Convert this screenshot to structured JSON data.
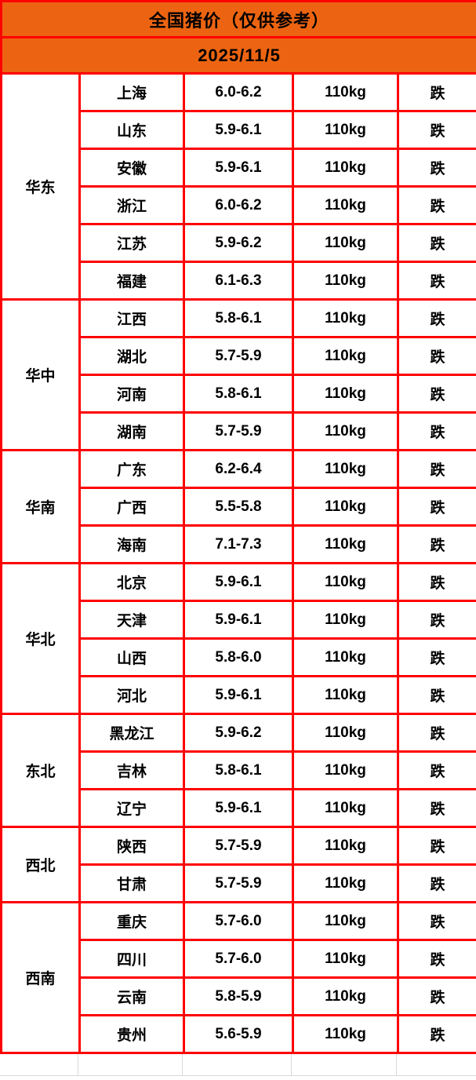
{
  "header": {
    "title": "全国猪价（仅供参考）",
    "date": "2025/11/5"
  },
  "colors": {
    "header_bg": "#ec6412",
    "border_red": "#ff0000",
    "status_green": "#1bc71b",
    "text_black": "#000000",
    "grid_gray": "#d9d9d9"
  },
  "table": {
    "regions": [
      {
        "name": "华东",
        "provinces": [
          {
            "name": "上海",
            "price": "6.0-6.2",
            "weight": "110kg",
            "status": "跌"
          },
          {
            "name": "山东",
            "price": "5.9-6.1",
            "weight": "110kg",
            "status": "跌"
          },
          {
            "name": "安徽",
            "price": "5.9-6.1",
            "weight": "110kg",
            "status": "跌"
          },
          {
            "name": "浙江",
            "price": "6.0-6.2",
            "weight": "110kg",
            "status": "跌"
          },
          {
            "name": "江苏",
            "price": "5.9-6.2",
            "weight": "110kg",
            "status": "跌"
          },
          {
            "name": "福建",
            "price": "6.1-6.3",
            "weight": "110kg",
            "status": "跌"
          }
        ]
      },
      {
        "name": "华中",
        "provinces": [
          {
            "name": "江西",
            "price": "5.8-6.1",
            "weight": "110kg",
            "status": "跌"
          },
          {
            "name": "湖北",
            "price": "5.7-5.9",
            "weight": "110kg",
            "status": "跌"
          },
          {
            "name": "河南",
            "price": "5.8-6.1",
            "weight": "110kg",
            "status": "跌"
          },
          {
            "name": "湖南",
            "price": "5.7-5.9",
            "weight": "110kg",
            "status": "跌"
          }
        ]
      },
      {
        "name": "华南",
        "provinces": [
          {
            "name": "广东",
            "price": "6.2-6.4",
            "weight": "110kg",
            "status": "跌"
          },
          {
            "name": "广西",
            "price": "5.5-5.8",
            "weight": "110kg",
            "status": "跌"
          },
          {
            "name": "海南",
            "price": "7.1-7.3",
            "weight": "110kg",
            "status": "跌"
          }
        ]
      },
      {
        "name": "华北",
        "provinces": [
          {
            "name": "北京",
            "price": "5.9-6.1",
            "weight": "110kg",
            "status": "跌"
          },
          {
            "name": "天津",
            "price": "5.9-6.1",
            "weight": "110kg",
            "status": "跌"
          },
          {
            "name": "山西",
            "price": "5.8-6.0",
            "weight": "110kg",
            "status": "跌"
          },
          {
            "name": "河北",
            "price": "5.9-6.1",
            "weight": "110kg",
            "status": "跌"
          }
        ]
      },
      {
        "name": "东北",
        "provinces": [
          {
            "name": "黑龙江",
            "price": "5.9-6.2",
            "weight": "110kg",
            "status": "跌"
          },
          {
            "name": "吉林",
            "price": "5.8-6.1",
            "weight": "110kg",
            "status": "跌"
          },
          {
            "name": "辽宁",
            "price": "5.9-6.1",
            "weight": "110kg",
            "status": "跌"
          }
        ]
      },
      {
        "name": "西北",
        "provinces": [
          {
            "name": "陕西",
            "price": "5.7-5.9",
            "weight": "110kg",
            "status": "跌"
          },
          {
            "name": "甘肃",
            "price": "5.7-5.9",
            "weight": "110kg",
            "status": "跌"
          }
        ]
      },
      {
        "name": "西南",
        "provinces": [
          {
            "name": "重庆",
            "price": "5.7-6.0",
            "weight": "110kg",
            "status": "跌"
          },
          {
            "name": "四川",
            "price": "5.7-6.0",
            "weight": "110kg",
            "status": "跌"
          },
          {
            "name": "云南",
            "price": "5.8-5.9",
            "weight": "110kg",
            "status": "跌"
          },
          {
            "name": "贵州",
            "price": "5.6-5.9",
            "weight": "110kg",
            "status": "跌"
          }
        ]
      }
    ]
  },
  "chart_data": {
    "type": "table",
    "title": "全国猪价（仅供参考）",
    "date": "2025/11/5",
    "rows": [
      {
        "region": "华东",
        "province": "上海",
        "price_range": "6.0-6.2",
        "weight": "110kg",
        "trend": "跌"
      },
      {
        "region": "华东",
        "province": "山东",
        "price_range": "5.9-6.1",
        "weight": "110kg",
        "trend": "跌"
      },
      {
        "region": "华东",
        "province": "安徽",
        "price_range": "5.9-6.1",
        "weight": "110kg",
        "trend": "跌"
      },
      {
        "region": "华东",
        "province": "浙江",
        "price_range": "6.0-6.2",
        "weight": "110kg",
        "trend": "跌"
      },
      {
        "region": "华东",
        "province": "江苏",
        "price_range": "5.9-6.2",
        "weight": "110kg",
        "trend": "跌"
      },
      {
        "region": "华东",
        "province": "福建",
        "price_range": "6.1-6.3",
        "weight": "110kg",
        "trend": "跌"
      },
      {
        "region": "华中",
        "province": "江西",
        "price_range": "5.8-6.1",
        "weight": "110kg",
        "trend": "跌"
      },
      {
        "region": "华中",
        "province": "湖北",
        "price_range": "5.7-5.9",
        "weight": "110kg",
        "trend": "跌"
      },
      {
        "region": "华中",
        "province": "河南",
        "price_range": "5.8-6.1",
        "weight": "110kg",
        "trend": "跌"
      },
      {
        "region": "华中",
        "province": "湖南",
        "price_range": "5.7-5.9",
        "weight": "110kg",
        "trend": "跌"
      },
      {
        "region": "华南",
        "province": "广东",
        "price_range": "6.2-6.4",
        "weight": "110kg",
        "trend": "跌"
      },
      {
        "region": "华南",
        "province": "广西",
        "price_range": "5.5-5.8",
        "weight": "110kg",
        "trend": "跌"
      },
      {
        "region": "华南",
        "province": "海南",
        "price_range": "7.1-7.3",
        "weight": "110kg",
        "trend": "跌"
      },
      {
        "region": "华北",
        "province": "北京",
        "price_range": "5.9-6.1",
        "weight": "110kg",
        "trend": "跌"
      },
      {
        "region": "华北",
        "province": "天津",
        "price_range": "5.9-6.1",
        "weight": "110kg",
        "trend": "跌"
      },
      {
        "region": "华北",
        "province": "山西",
        "price_range": "5.8-6.0",
        "weight": "110kg",
        "trend": "跌"
      },
      {
        "region": "华北",
        "province": "河北",
        "price_range": "5.9-6.1",
        "weight": "110kg",
        "trend": "跌"
      },
      {
        "region": "东北",
        "province": "黑龙江",
        "price_range": "5.9-6.2",
        "weight": "110kg",
        "trend": "跌"
      },
      {
        "region": "东北",
        "province": "吉林",
        "price_range": "5.8-6.1",
        "weight": "110kg",
        "trend": "跌"
      },
      {
        "region": "东北",
        "province": "辽宁",
        "price_range": "5.9-6.1",
        "weight": "110kg",
        "trend": "跌"
      },
      {
        "region": "西北",
        "province": "陕西",
        "price_range": "5.7-5.9",
        "weight": "110kg",
        "trend": "跌"
      },
      {
        "region": "西北",
        "province": "甘肃",
        "price_range": "5.7-5.9",
        "weight": "110kg",
        "trend": "跌"
      },
      {
        "region": "西南",
        "province": "重庆",
        "price_range": "5.7-6.0",
        "weight": "110kg",
        "trend": "跌"
      },
      {
        "region": "西南",
        "province": "四川",
        "price_range": "5.7-6.0",
        "weight": "110kg",
        "trend": "跌"
      },
      {
        "region": "西南",
        "province": "云南",
        "price_range": "5.8-5.9",
        "weight": "110kg",
        "trend": "跌"
      },
      {
        "region": "西南",
        "province": "贵州",
        "price_range": "5.6-5.9",
        "weight": "110kg",
        "trend": "跌"
      }
    ]
  }
}
